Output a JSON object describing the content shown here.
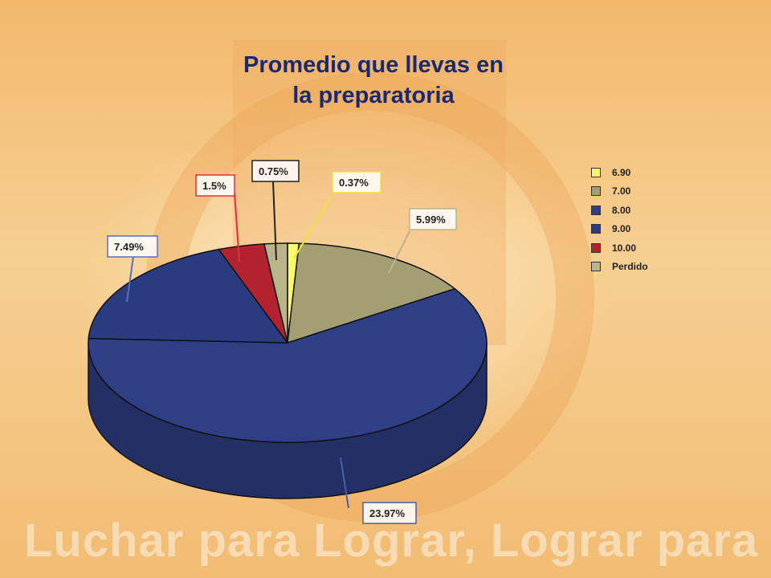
{
  "background": {
    "slogan": "Luchar para Lograr, Lograr para Dar"
  },
  "chart_data": {
    "type": "pie",
    "title": "Promedio que llevas en la preparatoria",
    "title_lines": [
      "Promedio que llevas en",
      "la preparatoria"
    ],
    "legend_position": "right",
    "slices": [
      {
        "name": "6.90",
        "value": 0.37,
        "label": "0.37%",
        "color": "#fafa6a",
        "border": "#f0e040"
      },
      {
        "name": "7.00",
        "value": 5.99,
        "label": "5.99%",
        "color": "#a39e74",
        "border": "#b9b48a"
      },
      {
        "name": "8.00",
        "value": 23.97,
        "label": "23.97%",
        "color": "#2e3f86",
        "border": "#4b5ea8"
      },
      {
        "name": "9.00",
        "value": 7.49,
        "label": "7.49%",
        "color": "#2b3b80",
        "border": "#5a6fba"
      },
      {
        "name": "10.00",
        "value": 1.5,
        "label": "1.5%",
        "color": "#b3222f",
        "border": "#e03040"
      },
      {
        "name": "Perdido",
        "value": 0.75,
        "label": "0.75%",
        "color": "#b9b48a",
        "border": "#222222"
      }
    ]
  }
}
